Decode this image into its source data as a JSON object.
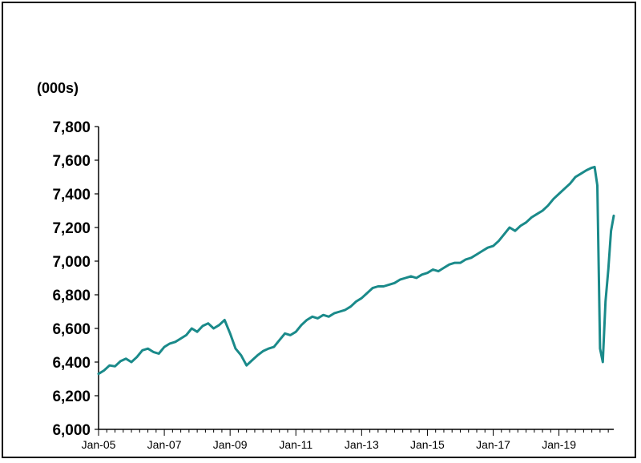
{
  "chart_data": {
    "type": "line",
    "title": "",
    "xlabel": "",
    "ylabel": "(000s)",
    "ylim": [
      6000,
      7800
    ],
    "y_ticks": [
      "6,000",
      "6,200",
      "6,400",
      "6,600",
      "6,800",
      "7,000",
      "7,200",
      "7,400",
      "7,600",
      "7,800"
    ],
    "y_tick_values": [
      6000,
      6200,
      6400,
      6600,
      6800,
      7000,
      7200,
      7400,
      7600,
      7800
    ],
    "x_ticks": [
      "Jan-05",
      "Jan-07",
      "Jan-09",
      "Jan-11",
      "Jan-13",
      "Jan-15",
      "Jan-17",
      "Jan-19"
    ],
    "x_start": "Jan-05",
    "x_end": "Sep-20",
    "line_color": "#1a8a8a",
    "grid": false,
    "series": [
      {
        "name": "",
        "points": [
          [
            "Jan-05",
            6330
          ],
          [
            "Mar-05",
            6350
          ],
          [
            "May-05",
            6380
          ],
          [
            "Jul-05",
            6375
          ],
          [
            "Sep-05",
            6405
          ],
          [
            "Nov-05",
            6420
          ],
          [
            "Jan-06",
            6400
          ],
          [
            "Mar-06",
            6430
          ],
          [
            "May-06",
            6470
          ],
          [
            "Jul-06",
            6480
          ],
          [
            "Sep-06",
            6460
          ],
          [
            "Nov-06",
            6450
          ],
          [
            "Jan-07",
            6490
          ],
          [
            "Mar-07",
            6510
          ],
          [
            "May-07",
            6520
          ],
          [
            "Jul-07",
            6540
          ],
          [
            "Sep-07",
            6560
          ],
          [
            "Nov-07",
            6600
          ],
          [
            "Jan-08",
            6580
          ],
          [
            "Mar-08",
            6615
          ],
          [
            "May-08",
            6630
          ],
          [
            "Jul-08",
            6600
          ],
          [
            "Sep-08",
            6620
          ],
          [
            "Nov-08",
            6650
          ],
          [
            "Jan-09",
            6570
          ],
          [
            "Mar-09",
            6480
          ],
          [
            "May-09",
            6440
          ],
          [
            "Jul-09",
            6380
          ],
          [
            "Sep-09",
            6410
          ],
          [
            "Nov-09",
            6440
          ],
          [
            "Jan-10",
            6465
          ],
          [
            "Mar-10",
            6480
          ],
          [
            "May-10",
            6490
          ],
          [
            "Jul-10",
            6530
          ],
          [
            "Sep-10",
            6570
          ],
          [
            "Nov-10",
            6560
          ],
          [
            "Jan-11",
            6580
          ],
          [
            "Mar-11",
            6620
          ],
          [
            "May-11",
            6650
          ],
          [
            "Jul-11",
            6670
          ],
          [
            "Sep-11",
            6660
          ],
          [
            "Nov-11",
            6680
          ],
          [
            "Jan-12",
            6670
          ],
          [
            "Mar-12",
            6690
          ],
          [
            "May-12",
            6700
          ],
          [
            "Jul-12",
            6710
          ],
          [
            "Sep-12",
            6730
          ],
          [
            "Nov-12",
            6760
          ],
          [
            "Jan-13",
            6780
          ],
          [
            "Mar-13",
            6810
          ],
          [
            "May-13",
            6840
          ],
          [
            "Jul-13",
            6850
          ],
          [
            "Sep-13",
            6850
          ],
          [
            "Nov-13",
            6860
          ],
          [
            "Jan-14",
            6870
          ],
          [
            "Mar-14",
            6890
          ],
          [
            "May-14",
            6900
          ],
          [
            "Jul-14",
            6910
          ],
          [
            "Sep-14",
            6900
          ],
          [
            "Nov-14",
            6920
          ],
          [
            "Jan-15",
            6930
          ],
          [
            "Mar-15",
            6950
          ],
          [
            "May-15",
            6940
          ],
          [
            "Jul-15",
            6960
          ],
          [
            "Sep-15",
            6980
          ],
          [
            "Nov-15",
            6990
          ],
          [
            "Jan-16",
            6990
          ],
          [
            "Mar-16",
            7010
          ],
          [
            "May-16",
            7020
          ],
          [
            "Jul-16",
            7040
          ],
          [
            "Sep-16",
            7060
          ],
          [
            "Nov-16",
            7080
          ],
          [
            "Jan-17",
            7090
          ],
          [
            "Mar-17",
            7120
          ],
          [
            "May-17",
            7160
          ],
          [
            "Jul-17",
            7200
          ],
          [
            "Sep-17",
            7180
          ],
          [
            "Nov-17",
            7210
          ],
          [
            "Jan-18",
            7230
          ],
          [
            "Mar-18",
            7260
          ],
          [
            "May-18",
            7280
          ],
          [
            "Jul-18",
            7300
          ],
          [
            "Sep-18",
            7330
          ],
          [
            "Nov-18",
            7370
          ],
          [
            "Jan-19",
            7400
          ],
          [
            "Mar-19",
            7430
          ],
          [
            "May-19",
            7460
          ],
          [
            "Jul-19",
            7500
          ],
          [
            "Sep-19",
            7520
          ],
          [
            "Nov-19",
            7540
          ],
          [
            "Jan-20",
            7555
          ],
          [
            "Feb-20",
            7560
          ],
          [
            "Mar-20",
            7450
          ],
          [
            "Apr-20",
            6480
          ],
          [
            "May-20",
            6400
          ],
          [
            "Jun-20",
            6760
          ],
          [
            "Jul-20",
            6950
          ],
          [
            "Aug-20",
            7180
          ],
          [
            "Sep-20",
            7270
          ]
        ]
      }
    ]
  }
}
